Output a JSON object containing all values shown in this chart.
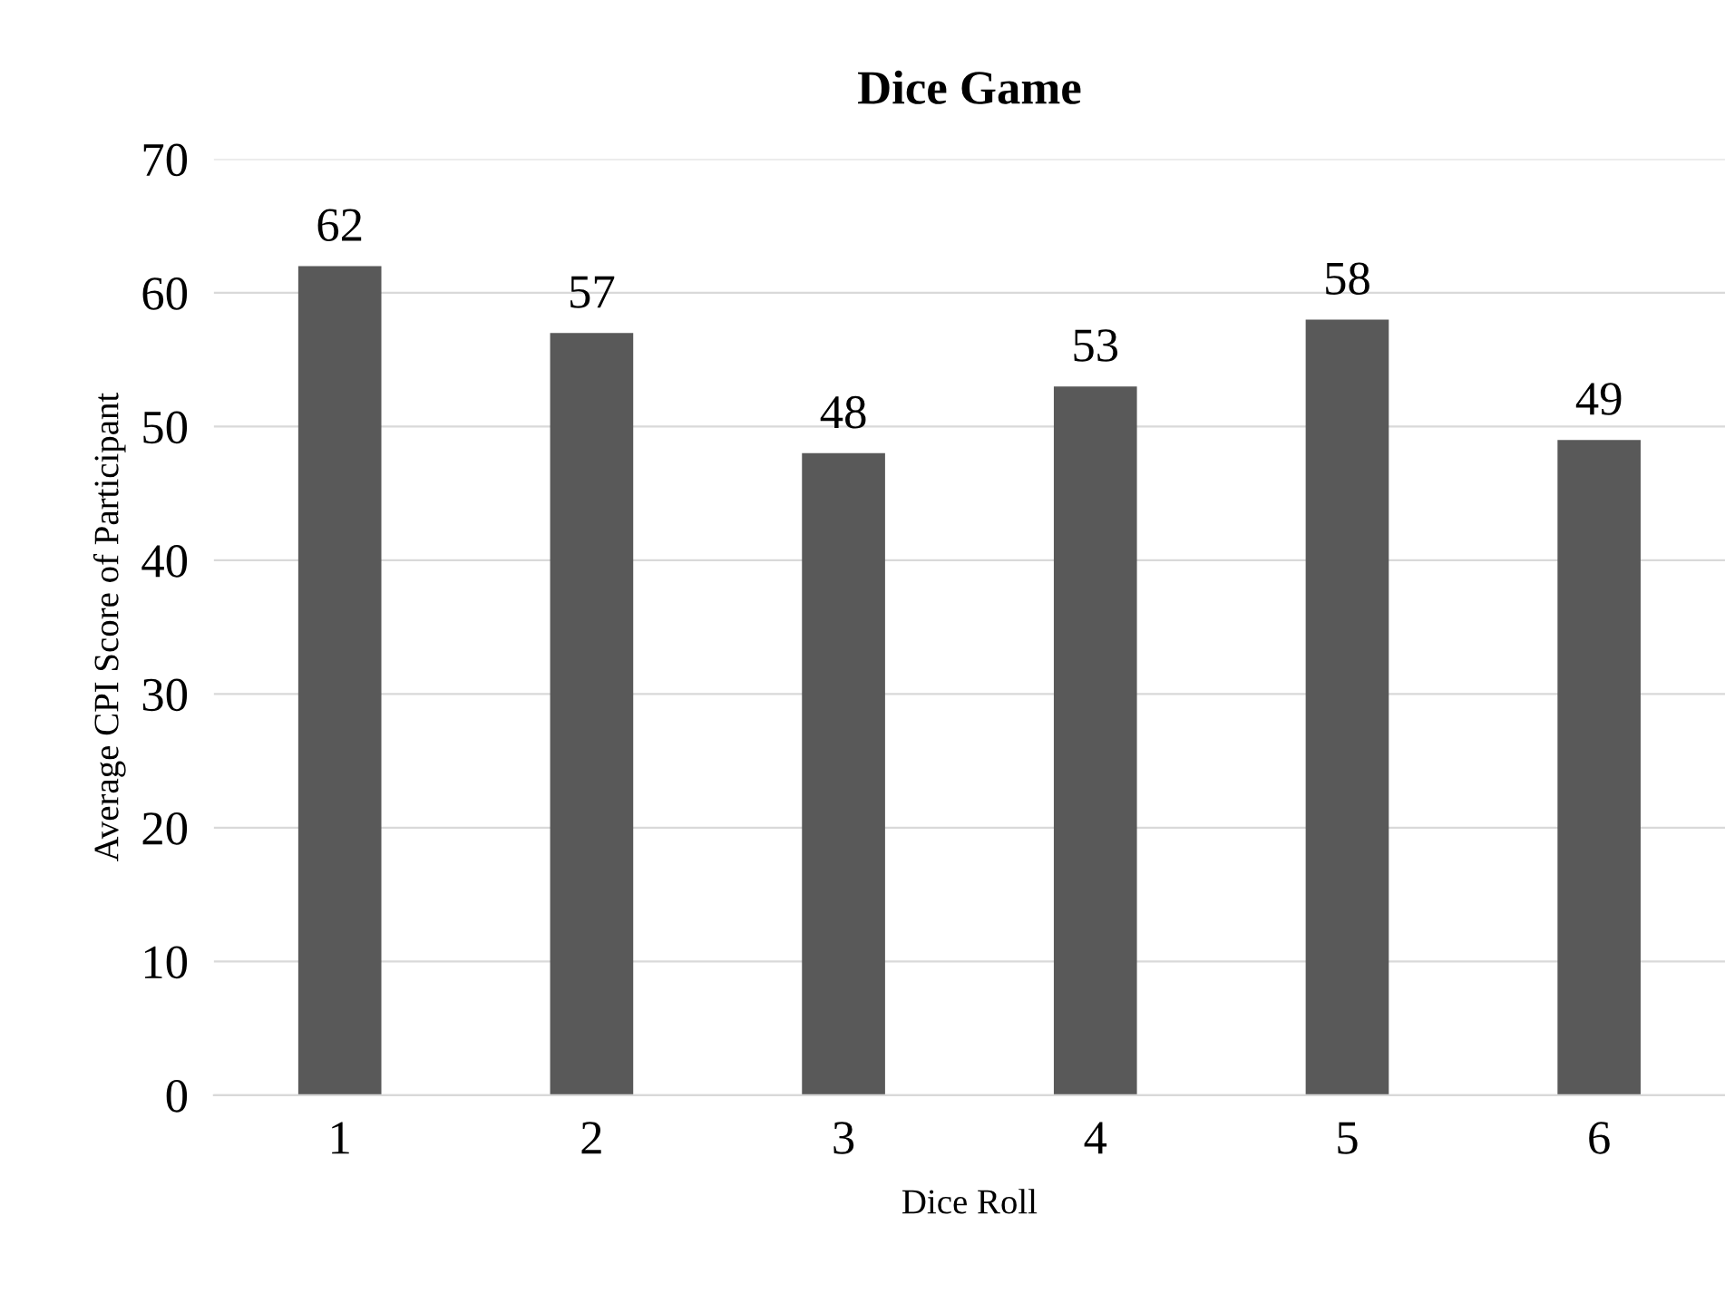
{
  "chart_data": {
    "type": "bar",
    "title": "Dice Game",
    "xlabel": "Dice Roll",
    "ylabel": "Average CPI Score of Participant",
    "categories": [
      "1",
      "2",
      "3",
      "4",
      "5",
      "6"
    ],
    "values": [
      62,
      57,
      48,
      53,
      58,
      49
    ],
    "color": "#595959",
    "ylim": [
      0,
      70
    ],
    "yticks": [
      0,
      10,
      20,
      30,
      40,
      50,
      60,
      70
    ],
    "data_labels": true,
    "grid": "y",
    "legend": false
  }
}
